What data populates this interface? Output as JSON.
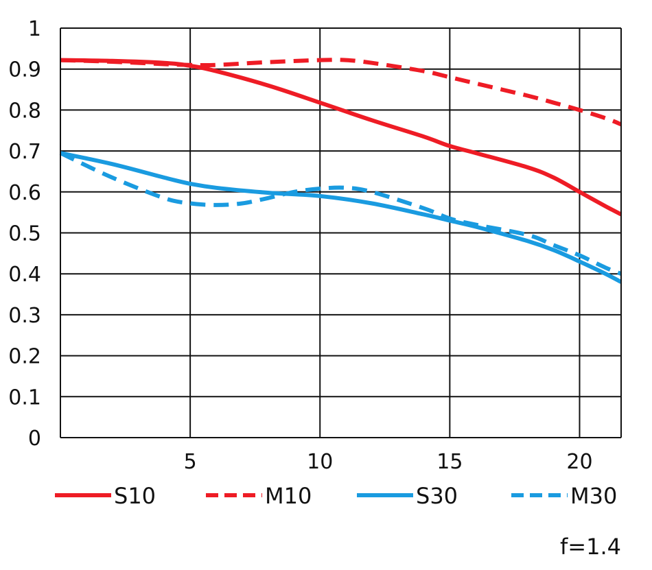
{
  "chart_data": {
    "type": "line",
    "title": "",
    "xlabel": "",
    "ylabel": "",
    "xlim": [
      0,
      21.6
    ],
    "ylim": [
      0,
      1
    ],
    "grid": true,
    "x_ticks": [
      "5",
      "10",
      "15",
      "20"
    ],
    "y_ticks": [
      "0",
      "0.1",
      "0.2",
      "0.3",
      "0.4",
      "0.5",
      "0.6",
      "0.7",
      "0.8",
      "0.9",
      "1"
    ],
    "legend_position": "bottom",
    "series": [
      {
        "name": "S10",
        "color": "#ee1c25",
        "style": "solid",
        "x": [
          0,
          2,
          4,
          5,
          6,
          8,
          10,
          12,
          14,
          15,
          16,
          18,
          19,
          20,
          21,
          21.6
        ],
        "y": [
          0.922,
          0.92,
          0.915,
          0.908,
          0.895,
          0.86,
          0.818,
          0.775,
          0.735,
          0.712,
          0.695,
          0.66,
          0.635,
          0.6,
          0.565,
          0.545
        ]
      },
      {
        "name": "M10",
        "color": "#ee1c25",
        "style": "dashed",
        "x": [
          0,
          2,
          4,
          5,
          6,
          8,
          10,
          11,
          12,
          14,
          15,
          16,
          18,
          19,
          20,
          21,
          21.6
        ],
        "y": [
          0.922,
          0.918,
          0.912,
          0.91,
          0.91,
          0.917,
          0.922,
          0.922,
          0.915,
          0.895,
          0.88,
          0.865,
          0.835,
          0.818,
          0.8,
          0.78,
          0.765
        ]
      },
      {
        "name": "S30",
        "color": "#1a9be0",
        "style": "solid",
        "x": [
          0,
          2,
          4,
          5,
          6,
          8,
          10,
          12,
          14,
          15,
          16,
          18,
          19,
          20,
          21,
          21.6
        ],
        "y": [
          0.695,
          0.668,
          0.635,
          0.62,
          0.61,
          0.598,
          0.59,
          0.572,
          0.545,
          0.53,
          0.515,
          0.48,
          0.458,
          0.43,
          0.4,
          0.38
        ]
      },
      {
        "name": "M30",
        "color": "#1a9be0",
        "style": "dashed",
        "x": [
          0,
          2,
          4,
          5,
          6,
          7,
          8,
          9,
          10,
          11,
          12,
          14,
          15,
          16,
          18,
          19,
          20,
          21,
          21.6
        ],
        "y": [
          0.695,
          0.635,
          0.585,
          0.572,
          0.568,
          0.572,
          0.585,
          0.6,
          0.608,
          0.61,
          0.6,
          0.56,
          0.535,
          0.52,
          0.495,
          0.47,
          0.445,
          0.415,
          0.4
        ]
      }
    ],
    "annotation": "f=1.4"
  }
}
